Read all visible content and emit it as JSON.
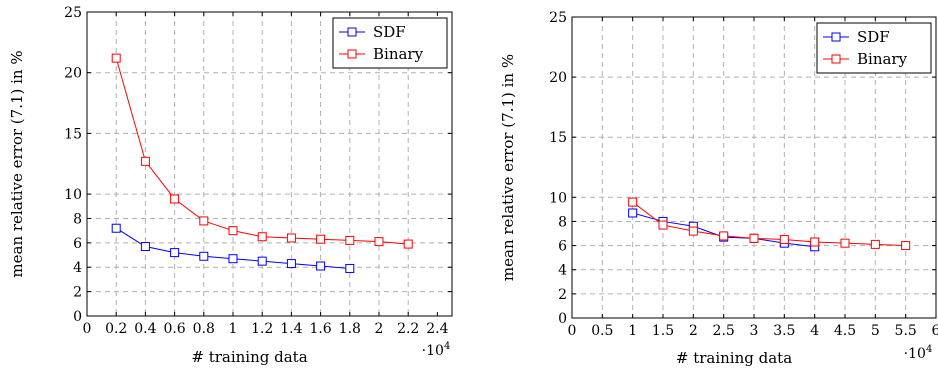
{
  "chart_data": [
    {
      "type": "line",
      "xlabel": "# training data",
      "ylabel": "mean relative error (7.1) in %",
      "x_scale_label": "·10^4",
      "xlim": [
        0,
        2.5
      ],
      "ylim": [
        0,
        25
      ],
      "x_ticks": [
        0,
        0.2,
        0.4,
        0.6,
        0.8,
        1,
        1.2,
        1.4,
        1.6,
        1.8,
        2,
        2.2,
        2.4
      ],
      "x_tick_labels": [
        "0",
        "0.2",
        "0.4",
        "0.6",
        "0.8",
        "1",
        "1.2",
        "1.4",
        "1.6",
        "1.8",
        "2",
        "2.2",
        "2.4"
      ],
      "y_ticks": [
        0,
        2,
        4,
        6,
        8,
        10,
        15,
        20,
        25
      ],
      "y_tick_labels": [
        "0",
        "2",
        "4",
        "6",
        "8",
        "10",
        "15",
        "20",
        "25"
      ],
      "y_scale": "piecewise",
      "grid": true,
      "legend_position": "top-right",
      "series": [
        {
          "name": "SDF",
          "color": "#0000ff",
          "marker": "square",
          "x": [
            0.2,
            0.4,
            0.6,
            0.8,
            1.0,
            1.2,
            1.4,
            1.6,
            1.8
          ],
          "y": [
            7.2,
            5.7,
            5.2,
            4.9,
            4.7,
            4.5,
            4.3,
            4.1,
            3.9
          ]
        },
        {
          "name": "Binary",
          "color": "#ff0000",
          "marker": "square",
          "x": [
            0.2,
            0.4,
            0.6,
            0.8,
            1.0,
            1.2,
            1.4,
            1.6,
            1.8,
            2.0,
            2.2
          ],
          "y": [
            21.2,
            12.7,
            9.6,
            7.8,
            7.0,
            6.5,
            6.4,
            6.3,
            6.2,
            6.1,
            5.9
          ]
        }
      ]
    },
    {
      "type": "line",
      "xlabel": "# training data",
      "ylabel": "mean relative error (7.1) in %",
      "x_scale_label": "·10^4",
      "xlim": [
        0,
        6
      ],
      "ylim": [
        0,
        25
      ],
      "x_ticks": [
        0,
        0.5,
        1,
        1.5,
        2,
        2.5,
        3,
        3.5,
        4,
        4.5,
        5,
        5.5,
        6
      ],
      "x_tick_labels": [
        "0",
        "0.5",
        "1",
        "1.5",
        "2",
        "2.5",
        "3",
        "3.5",
        "4",
        "4.5",
        "5",
        "5.5",
        "6"
      ],
      "y_ticks": [
        0,
        2,
        4,
        6,
        8,
        10,
        15,
        20,
        25
      ],
      "y_tick_labels": [
        "0",
        "2",
        "4",
        "6",
        "8",
        "10",
        "15",
        "20",
        "25"
      ],
      "y_scale": "piecewise",
      "grid": true,
      "legend_position": "top-right",
      "series": [
        {
          "name": "SDF",
          "color": "#0000ff",
          "marker": "square",
          "x": [
            1.0,
            1.5,
            2.0,
            2.5,
            3.0,
            3.5,
            4.0
          ],
          "y": [
            8.7,
            8.0,
            7.6,
            6.7,
            6.6,
            6.2,
            5.9
          ]
        },
        {
          "name": "Binary",
          "color": "#ff0000",
          "marker": "square",
          "x": [
            1.0,
            1.5,
            2.0,
            2.5,
            3.0,
            3.5,
            4.0,
            4.5,
            5.0,
            5.5
          ],
          "y": [
            9.6,
            7.7,
            7.2,
            6.8,
            6.6,
            6.5,
            6.3,
            6.2,
            6.1,
            6.0
          ]
        }
      ]
    }
  ]
}
